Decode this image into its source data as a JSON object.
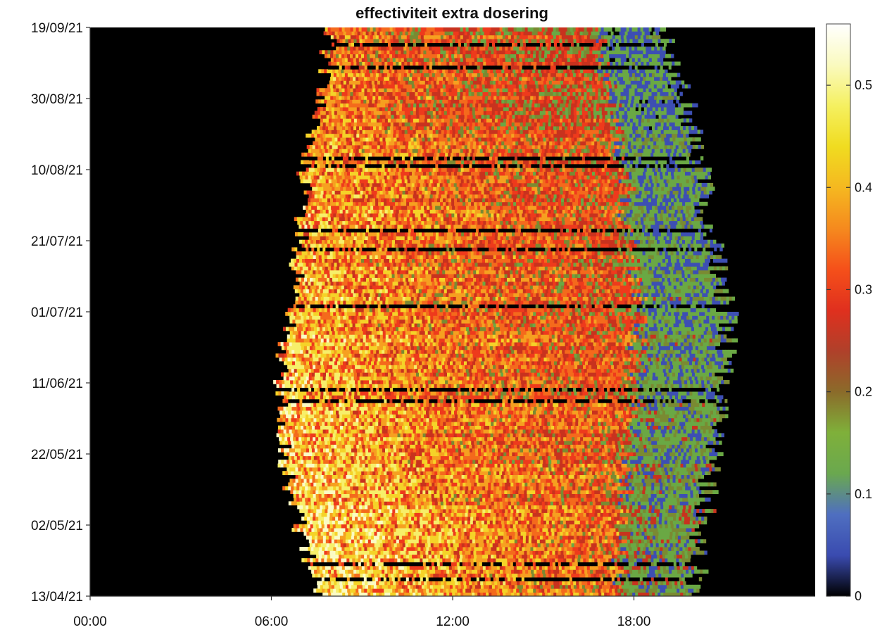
{
  "chart_data": {
    "type": "heatmap",
    "title": "effectiviteit extra dosering",
    "xlabel": "",
    "ylabel": "",
    "x_axis": {
      "unit": "time of day",
      "range": [
        "00:00",
        "24:00"
      ],
      "tick_labels": [
        "00:00",
        "06:00",
        "12:00",
        "18:00"
      ]
    },
    "y_axis": {
      "unit": "date",
      "range": [
        "13/04/21",
        "19/09/21"
      ],
      "tick_labels": [
        "13/04/21",
        "02/05/21",
        "22/05/21",
        "11/06/21",
        "01/07/21",
        "21/07/21",
        "10/08/21",
        "30/08/21",
        "19/09/21"
      ]
    },
    "colorbar": {
      "range": [
        0,
        0.56
      ],
      "tick_labels": [
        "0",
        "0.1",
        "0.2",
        "0.3",
        "0.4",
        "0.5"
      ],
      "colormap": [
        "#000000",
        "#3a4bb0",
        "#4f6fc0",
        "#6aa84f",
        "#7fb03a",
        "#8b6b2a",
        "#b0402a",
        "#e0301e",
        "#f5501a",
        "#f58a1e",
        "#f5b820",
        "#f0dc20",
        "#f5f060",
        "#fafac0",
        "#ffffff"
      ]
    },
    "background_color": "#000000",
    "activity_window": {
      "description_start_hours": [
        7.6,
        6.9,
        6.4,
        6.3,
        6.6,
        7.0,
        7.1,
        7.6,
        8.0
      ],
      "description_end_hours": [
        20.0,
        20.2,
        20.6,
        21.0,
        21.0,
        20.5,
        20.2,
        19.7,
        18.9
      ],
      "dates": [
        "13/04/21",
        "02/05/21",
        "22/05/21",
        "11/06/21",
        "01/07/21",
        "21/07/21",
        "10/08/21",
        "30/08/21",
        "19/09/21"
      ]
    }
  }
}
